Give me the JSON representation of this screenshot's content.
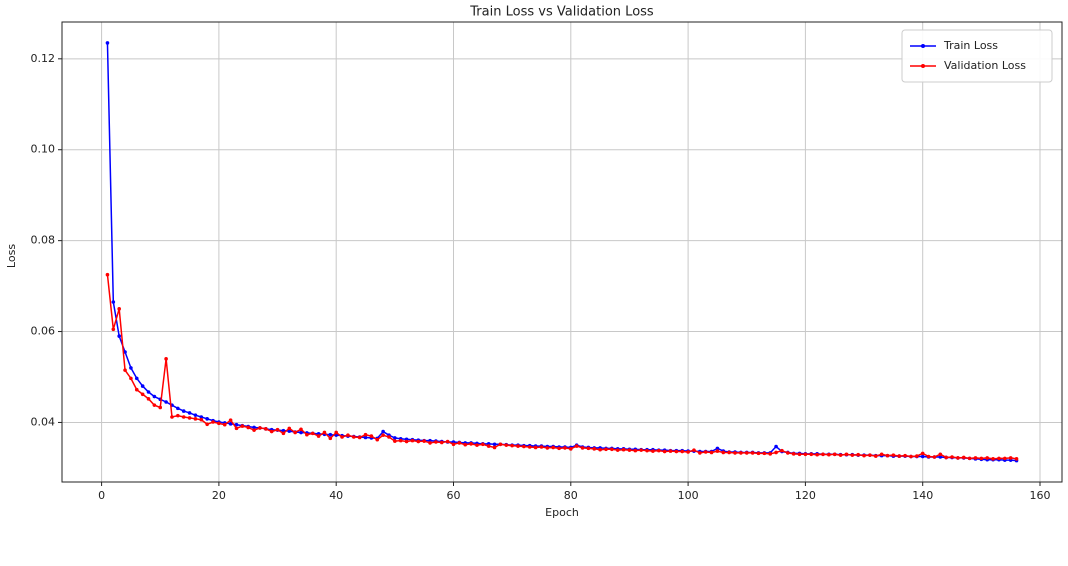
{
  "chart_data": {
    "type": "line",
    "title": "Train Loss vs Validation Loss",
    "xlabel": "Epoch",
    "ylabel": "Loss",
    "x": [
      1,
      2,
      3,
      4,
      5,
      6,
      7,
      8,
      9,
      10,
      11,
      12,
      13,
      14,
      15,
      16,
      17,
      18,
      19,
      20,
      21,
      22,
      23,
      24,
      25,
      26,
      27,
      28,
      29,
      30,
      31,
      32,
      33,
      34,
      35,
      36,
      37,
      38,
      39,
      40,
      41,
      42,
      43,
      44,
      45,
      46,
      47,
      48,
      49,
      50,
      51,
      52,
      53,
      54,
      55,
      56,
      57,
      58,
      59,
      60,
      61,
      62,
      63,
      64,
      65,
      66,
      67,
      68,
      69,
      70,
      71,
      72,
      73,
      74,
      75,
      76,
      77,
      78,
      79,
      80,
      81,
      82,
      83,
      84,
      85,
      86,
      87,
      88,
      89,
      90,
      91,
      92,
      93,
      94,
      95,
      96,
      97,
      98,
      99,
      100,
      101,
      102,
      103,
      104,
      105,
      106,
      107,
      108,
      109,
      110,
      111,
      112,
      113,
      114,
      115,
      116,
      117,
      118,
      119,
      120,
      121,
      122,
      123,
      124,
      125,
      126,
      127,
      128,
      129,
      130,
      131,
      132,
      133,
      134,
      135,
      136,
      137,
      138,
      139,
      140,
      141,
      142,
      143,
      144,
      145,
      146,
      147,
      148,
      149,
      150,
      151,
      152,
      153,
      154,
      155,
      156
    ],
    "series": [
      {
        "name": "Train Loss",
        "color": "#0000ff",
        "values": [
          0.1235,
          0.0665,
          0.059,
          0.0555,
          0.052,
          0.0497,
          0.048,
          0.0467,
          0.0457,
          0.0451,
          0.0445,
          0.0438,
          0.0431,
          0.0425,
          0.0421,
          0.0416,
          0.0412,
          0.0408,
          0.0404,
          0.0401,
          0.0399,
          0.0397,
          0.0395,
          0.0393,
          0.0391,
          0.0389,
          0.0388,
          0.0386,
          0.0384,
          0.0383,
          0.0382,
          0.0381,
          0.0379,
          0.0378,
          0.0377,
          0.0376,
          0.0375,
          0.0374,
          0.0373,
          0.0372,
          0.0371,
          0.037,
          0.0369,
          0.0368,
          0.0367,
          0.0366,
          0.0365,
          0.038,
          0.0372,
          0.0366,
          0.0364,
          0.0363,
          0.0362,
          0.0361,
          0.036,
          0.036,
          0.0359,
          0.0358,
          0.0357,
          0.0357,
          0.0356,
          0.0355,
          0.0355,
          0.0354,
          0.0353,
          0.0353,
          0.0352,
          0.0352,
          0.0351,
          0.035,
          0.035,
          0.0349,
          0.0349,
          0.0348,
          0.0348,
          0.0347,
          0.0347,
          0.0346,
          0.0346,
          0.0345,
          0.035,
          0.0346,
          0.0345,
          0.0344,
          0.0344,
          0.0343,
          0.0343,
          0.0342,
          0.0342,
          0.0341,
          0.0341,
          0.034,
          0.034,
          0.034,
          0.0339,
          0.0339,
          0.0338,
          0.0338,
          0.0338,
          0.0337,
          0.0337,
          0.0336,
          0.0336,
          0.0336,
          0.0343,
          0.0337,
          0.0335,
          0.0335,
          0.0334,
          0.0334,
          0.0334,
          0.0333,
          0.0333,
          0.0333,
          0.0347,
          0.0336,
          0.0334,
          0.0332,
          0.0332,
          0.0331,
          0.0331,
          0.0331,
          0.033,
          0.033,
          0.033,
          0.0329,
          0.0329,
          0.0329,
          0.0328,
          0.0328,
          0.0328,
          0.0327,
          0.0327,
          0.0327,
          0.0326,
          0.0326,
          0.0326,
          0.0325,
          0.0325,
          0.0325,
          0.0324,
          0.0324,
          0.0324,
          0.0323,
          0.0323,
          0.0322,
          0.0322,
          0.0321,
          0.032,
          0.0319,
          0.0318,
          0.0318,
          0.0318,
          0.0317,
          0.0317,
          0.0316
        ]
      },
      {
        "name": "Validation Loss",
        "color": "#ff0000",
        "values": [
          0.0725,
          0.0605,
          0.065,
          0.0515,
          0.0497,
          0.0472,
          0.0462,
          0.0452,
          0.0438,
          0.0433,
          0.054,
          0.0412,
          0.0415,
          0.0412,
          0.041,
          0.0408,
          0.0406,
          0.0396,
          0.0401,
          0.0398,
          0.0395,
          0.0405,
          0.0387,
          0.0392,
          0.0389,
          0.0383,
          0.0388,
          0.0386,
          0.038,
          0.0384,
          0.0376,
          0.0387,
          0.0378,
          0.0385,
          0.0373,
          0.0376,
          0.037,
          0.0378,
          0.0365,
          0.0378,
          0.0368,
          0.0372,
          0.0368,
          0.0367,
          0.0373,
          0.037,
          0.0362,
          0.0372,
          0.0368,
          0.0359,
          0.036,
          0.0358,
          0.036,
          0.0358,
          0.0359,
          0.0355,
          0.0357,
          0.0356,
          0.0358,
          0.0352,
          0.0355,
          0.0351,
          0.0353,
          0.035,
          0.0352,
          0.0348,
          0.0345,
          0.0352,
          0.035,
          0.0349,
          0.0348,
          0.0347,
          0.0346,
          0.0345,
          0.0346,
          0.0344,
          0.0345,
          0.0343,
          0.0344,
          0.0342,
          0.0348,
          0.0344,
          0.0343,
          0.0342,
          0.034,
          0.0341,
          0.0341,
          0.0339,
          0.034,
          0.0339,
          0.0338,
          0.0339,
          0.0338,
          0.0337,
          0.0338,
          0.0336,
          0.0337,
          0.0336,
          0.0336,
          0.0335,
          0.0339,
          0.0333,
          0.0335,
          0.0334,
          0.0337,
          0.0334,
          0.0334,
          0.0333,
          0.0333,
          0.0333,
          0.0333,
          0.0332,
          0.0332,
          0.0331,
          0.0334,
          0.0338,
          0.0333,
          0.0331,
          0.033,
          0.033,
          0.033,
          0.0329,
          0.033,
          0.0329,
          0.033,
          0.0328,
          0.033,
          0.0328,
          0.0329,
          0.0327,
          0.0328,
          0.0326,
          0.033,
          0.0327,
          0.0328,
          0.0326,
          0.0327,
          0.0325,
          0.0326,
          0.0332,
          0.0325,
          0.0324,
          0.033,
          0.0323,
          0.0324,
          0.0322,
          0.0323,
          0.0321,
          0.0322,
          0.0321,
          0.0322,
          0.032,
          0.0321,
          0.0321,
          0.0322,
          0.032
        ]
      }
    ],
    "xlim": [
      -6.75,
      163.75
    ],
    "xticks": [
      0,
      20,
      40,
      60,
      80,
      100,
      120,
      140,
      160
    ],
    "ylim": [
      0.0269,
      0.1281
    ],
    "yticks": [
      0.04,
      0.06,
      0.08,
      {
        "value": 0.1,
        "label": "0.10"
      },
      0.12
    ],
    "grid": true,
    "legend": "upper right"
  }
}
